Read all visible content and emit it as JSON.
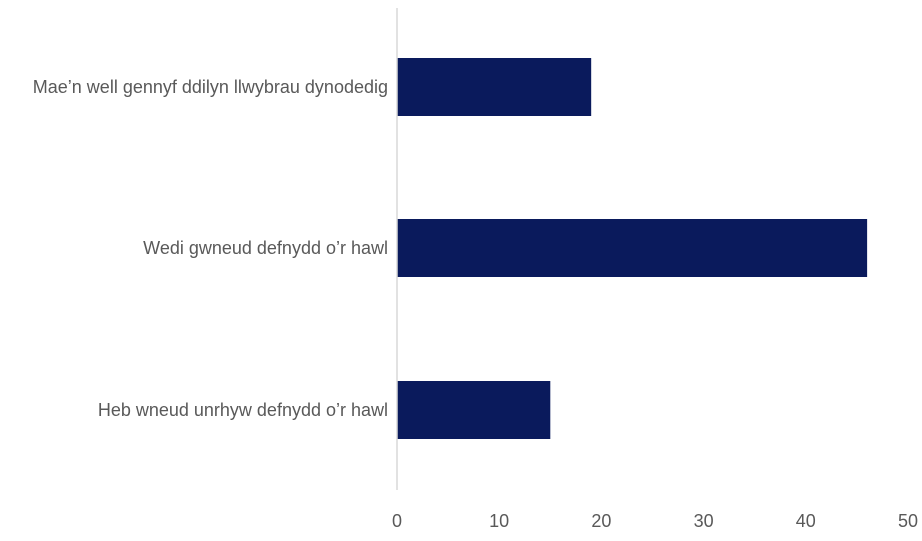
{
  "chart_data": {
    "type": "bar",
    "orientation": "horizontal",
    "categories": [
      "Mae’n well gennyf ddilyn llwybrau dynodedig",
      "Wedi gwneud defnydd o’r hawl",
      "Heb wneud unrhyw defnydd o’r hawl"
    ],
    "values": [
      19,
      46,
      15
    ],
    "xlim": [
      0,
      50
    ],
    "xticks": [
      0,
      10,
      20,
      30,
      40,
      50
    ],
    "title": "",
    "xlabel": "",
    "ylabel": "",
    "grid": false,
    "bar_color": "#0a1a5c",
    "axis_color": "#d9d9d9"
  }
}
